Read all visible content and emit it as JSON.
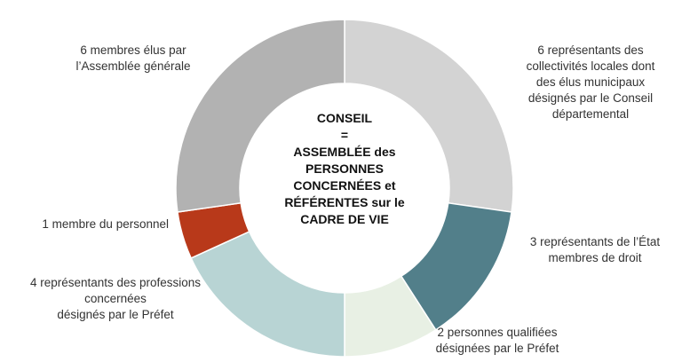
{
  "chart_data": {
    "type": "pie",
    "donut": true,
    "center_label": [
      "CONSEIL",
      "=",
      "ASSEMBLÉE des",
      "PERSONNES",
      "CONCERNÉES et",
      "RÉFÉRENTES sur le",
      "CADRE DE VIE"
    ],
    "slices": [
      {
        "value": 6,
        "color": "#d3d3d3",
        "label": [
          "6 représentants des",
          "collectivités locales dont",
          "des élus municipaux",
          "désignés par le Conseil",
          "départemental"
        ]
      },
      {
        "value": 3,
        "color": "#527f8a",
        "label": [
          "3 représentants de l’État",
          "membres de droit"
        ]
      },
      {
        "value": 2,
        "color": "#e8f0e4",
        "label": [
          "2 personnes qualifiées",
          "désignées par le Préfet"
        ]
      },
      {
        "value": 4,
        "color": "#b8d4d4",
        "label": [
          "4 représentants des professions",
          "concernées",
          "désignés par le Préfet"
        ]
      },
      {
        "value": 1,
        "color": "#b8391a",
        "label": [
          "1 membre du personnel"
        ]
      },
      {
        "value": 6,
        "color": "#b2b2b2",
        "label": [
          "6 membres élus par",
          "l’Assemblée générale"
        ]
      }
    ]
  }
}
